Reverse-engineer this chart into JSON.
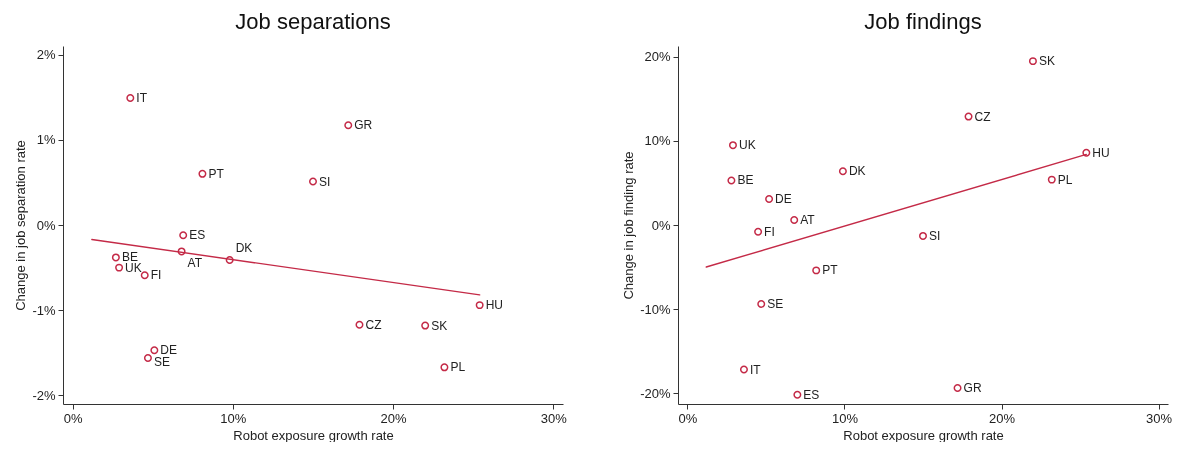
{
  "chart_data": [
    {
      "type": "scatter",
      "title": "Job separations",
      "xlabel": "Robot exposure growth rate",
      "ylabel": "Change in job separation rate",
      "marker": "circle",
      "xlim": [
        -0.6,
        30.6
      ],
      "xticks": [
        {
          "value": 0,
          "label": "0%"
        },
        {
          "value": 10,
          "label": "10%"
        },
        {
          "value": 20,
          "label": "20%"
        },
        {
          "value": 30,
          "label": "30%"
        }
      ],
      "ylim": [
        -2.1,
        2.1
      ],
      "yticks": [
        {
          "value": -2,
          "label": "-2%"
        },
        {
          "value": -1,
          "label": "-1%"
        },
        {
          "value": 0,
          "label": "0%"
        },
        {
          "value": 1,
          "label": "1%"
        },
        {
          "value": 2,
          "label": "2%"
        }
      ],
      "series": [
        {
          "name": "IT",
          "color": "#c42a47",
          "x": [
            3.6
          ],
          "values": [
            1.49
          ]
        },
        {
          "name": "PT",
          "color": "#c42a47",
          "x": [
            8.1
          ],
          "values": [
            0.6
          ]
        },
        {
          "name": "ES",
          "color": "#c42a47",
          "x": [
            6.9
          ],
          "values": [
            -0.12
          ]
        },
        {
          "name": "AT",
          "color": "#c42a47",
          "x": [
            6.8
          ],
          "values": [
            -0.31
          ]
        },
        {
          "name": "DK",
          "color": "#c42a47",
          "x": [
            9.8
          ],
          "values": [
            -0.41
          ]
        },
        {
          "name": "BE",
          "color": "#c42a47",
          "x": [
            2.7
          ],
          "values": [
            -0.38
          ]
        },
        {
          "name": "UK",
          "color": "#c42a47",
          "x": [
            2.9
          ],
          "values": [
            -0.5
          ]
        },
        {
          "name": "FI",
          "color": "#c42a47",
          "x": [
            4.5
          ],
          "values": [
            -0.59
          ]
        },
        {
          "name": "DE",
          "color": "#c42a47",
          "x": [
            5.1
          ],
          "values": [
            -1.47
          ]
        },
        {
          "name": "SE",
          "color": "#c42a47",
          "x": [
            4.7
          ],
          "values": [
            -1.56
          ]
        },
        {
          "name": "GR",
          "color": "#c42a47",
          "x": [
            17.2
          ],
          "values": [
            1.17
          ]
        },
        {
          "name": "SI",
          "color": "#c42a47",
          "x": [
            15.0
          ],
          "values": [
            0.51
          ]
        },
        {
          "name": "HU",
          "color": "#c42a47",
          "x": [
            25.4
          ],
          "values": [
            -0.94
          ]
        },
        {
          "name": "CZ",
          "color": "#c42a47",
          "x": [
            17.9
          ],
          "values": [
            -1.17
          ]
        },
        {
          "name": "SK",
          "color": "#c42a47",
          "x": [
            22.0
          ],
          "values": [
            -1.18
          ]
        },
        {
          "name": "PL",
          "color": "#c42a47",
          "x": [
            23.2
          ],
          "values": [
            -1.67
          ]
        },
        {
          "type": "line",
          "color": "#c42a47",
          "line_style": "solid",
          "marker": "none",
          "x": [
            1.2,
            25.4
          ],
          "values": [
            -0.17,
            -0.82
          ]
        }
      ]
    },
    {
      "type": "scatter",
      "title": "Job findings",
      "xlabel": "Robot exposure growth rate",
      "ylabel": "Change in job finding rate",
      "marker": "circle",
      "xlim": [
        -0.6,
        30.6
      ],
      "xticks": [
        {
          "value": 0,
          "label": "0%"
        },
        {
          "value": 10,
          "label": "10%"
        },
        {
          "value": 20,
          "label": "20%"
        },
        {
          "value": 30,
          "label": "30%"
        }
      ],
      "ylim": [
        -21.3,
        21.3
      ],
      "yticks": [
        {
          "value": -20,
          "label": "-20%"
        },
        {
          "value": -10,
          "label": "-10%"
        },
        {
          "value": 0,
          "label": "0%"
        },
        {
          "value": 10,
          "label": "10%"
        },
        {
          "value": 20,
          "label": "20%"
        }
      ],
      "series": [
        {
          "name": "UK",
          "color": "#c42a47",
          "x": [
            2.9
          ],
          "values": [
            9.5
          ]
        },
        {
          "name": "BE",
          "color": "#c42a47",
          "x": [
            2.8
          ],
          "values": [
            5.3
          ]
        },
        {
          "name": "DE",
          "color": "#c42a47",
          "x": [
            5.2
          ],
          "values": [
            3.1
          ]
        },
        {
          "name": "AT",
          "color": "#c42a47",
          "x": [
            6.8
          ],
          "values": [
            0.6
          ]
        },
        {
          "name": "FI",
          "color": "#c42a47",
          "x": [
            4.5
          ],
          "values": [
            -0.8
          ]
        },
        {
          "name": "DK",
          "color": "#c42a47",
          "x": [
            9.9
          ],
          "values": [
            6.4
          ]
        },
        {
          "name": "PT",
          "color": "#c42a47",
          "x": [
            8.2
          ],
          "values": [
            -5.4
          ]
        },
        {
          "name": "SE",
          "color": "#c42a47",
          "x": [
            4.7
          ],
          "values": [
            -9.4
          ]
        },
        {
          "name": "IT",
          "color": "#c42a47",
          "x": [
            3.6
          ],
          "values": [
            -17.2
          ]
        },
        {
          "name": "ES",
          "color": "#c42a47",
          "x": [
            7.0
          ],
          "values": [
            -20.2
          ]
        },
        {
          "name": "SK",
          "color": "#c42a47",
          "x": [
            22.0
          ],
          "values": [
            19.5
          ]
        },
        {
          "name": "CZ",
          "color": "#c42a47",
          "x": [
            17.9
          ],
          "values": [
            12.9
          ]
        },
        {
          "name": "HU",
          "color": "#c42a47",
          "x": [
            25.4
          ],
          "values": [
            8.6
          ]
        },
        {
          "name": "PL",
          "color": "#c42a47",
          "x": [
            23.2
          ],
          "values": [
            5.4
          ]
        },
        {
          "name": "SI",
          "color": "#c42a47",
          "x": [
            15.0
          ],
          "values": [
            -1.3
          ]
        },
        {
          "name": "GR",
          "color": "#c42a47",
          "x": [
            17.2
          ],
          "values": [
            -19.4
          ]
        },
        {
          "type": "line",
          "color": "#c42a47",
          "line_style": "solid",
          "marker": "none",
          "x": [
            1.2,
            25.4
          ],
          "values": [
            -5.0,
            8.4
          ]
        }
      ]
    }
  ]
}
